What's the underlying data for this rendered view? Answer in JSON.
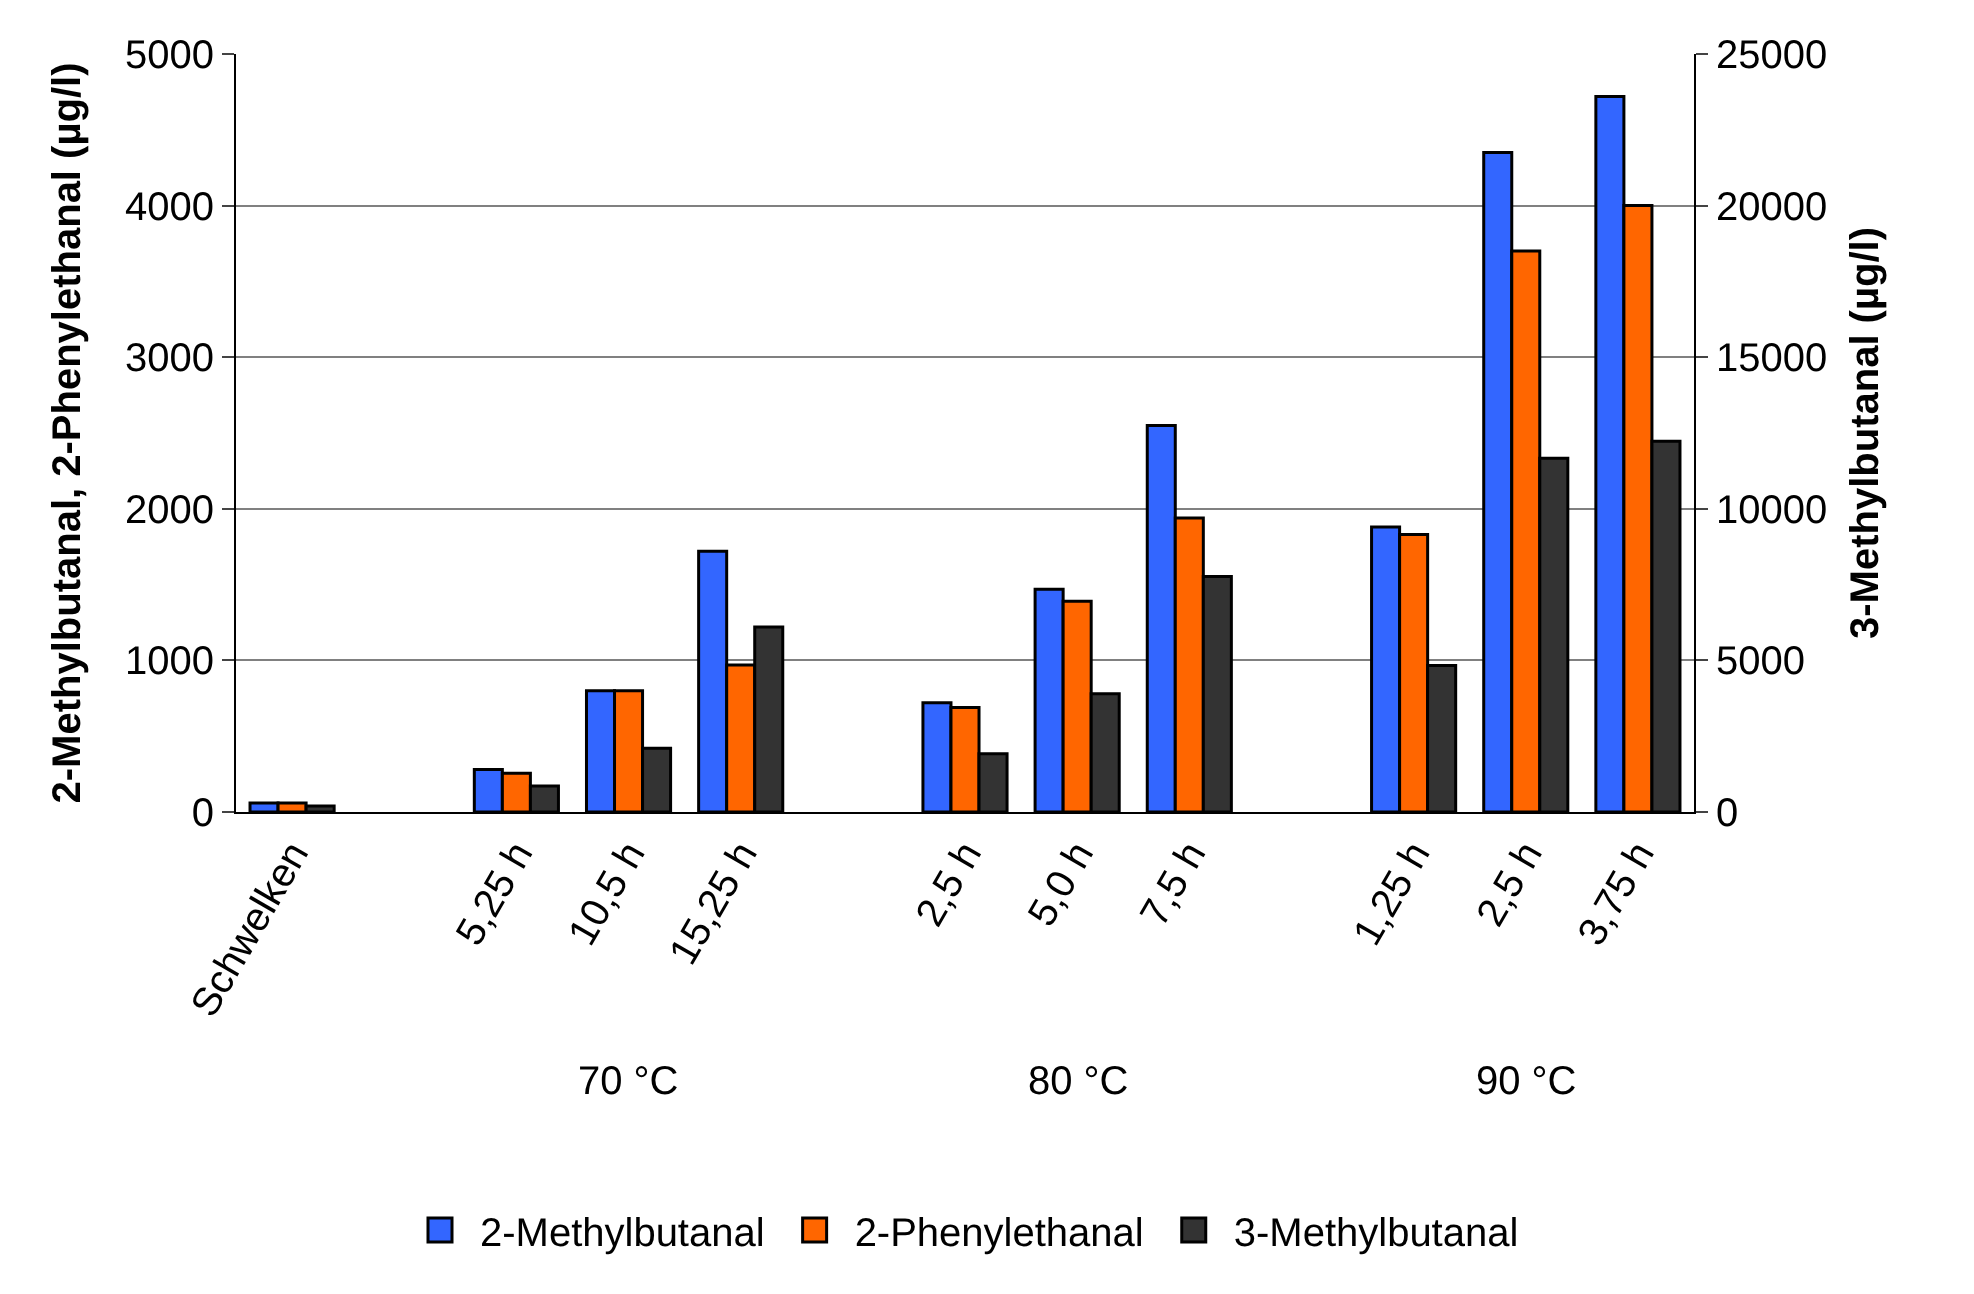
{
  "chart_data": {
    "type": "bar",
    "categories": [
      "Schwelken",
      null,
      "5,25 h",
      "10,5 h",
      "15,25 h",
      null,
      "2,5 h",
      "5,0 h",
      "7,5 h",
      null,
      "1,25 h",
      "2,5 h",
      "3,75 h"
    ],
    "series": [
      {
        "name": "2-Methylbutanal",
        "color": "#3366ff",
        "values": [
          60,
          null,
          280,
          800,
          1720,
          null,
          720,
          1470,
          2550,
          null,
          1880,
          4350,
          4720
        ]
      },
      {
        "name": "2-Phenylethanal",
        "color": "#ff6600",
        "values": [
          60,
          null,
          255,
          800,
          970,
          null,
          690,
          1390,
          1940,
          null,
          1830,
          3700,
          4000
        ]
      },
      {
        "name": "3-Methylbutanal",
        "color": "#333333",
        "axis": "y2",
        "values": [
          200,
          null,
          860,
          2100,
          6100,
          null,
          1920,
          3900,
          7770,
          null,
          4830,
          11670,
          12230
        ]
      }
    ],
    "ylabel": "2-Methylbutanal, 2-Phenylethanal (µg/l)",
    "y2label": "3-Methylbutanal (µg/l)",
    "ylim": [
      0,
      5000
    ],
    "yticks": [
      0,
      1000,
      2000,
      3000,
      4000,
      5000
    ],
    "y2lim": [
      0,
      25000
    ],
    "y2ticks": [
      0,
      5000,
      10000,
      15000,
      20000,
      25000
    ],
    "annotations": [
      "70 °C",
      "80 °C",
      "90 °C"
    ],
    "grid": "y",
    "legend": "bottom"
  }
}
